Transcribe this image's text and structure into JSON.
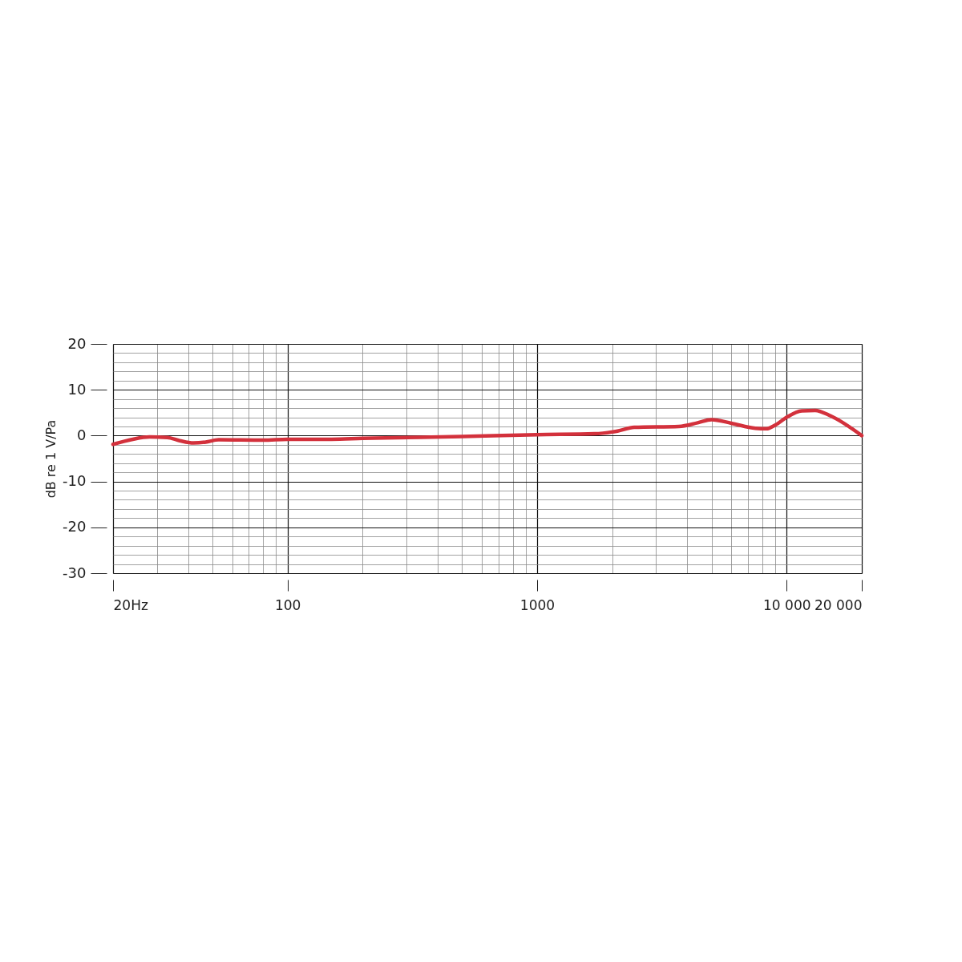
{
  "chart_data": {
    "type": "line",
    "ylabel": "dB re 1 V/Pa",
    "log": "x",
    "grid": true,
    "line_style": "solid",
    "marker": "none",
    "x": [
      20,
      24,
      28,
      33,
      37,
      42,
      47,
      53,
      80,
      100,
      150,
      200,
      500,
      1000,
      1700,
      2100,
      2450,
      3700,
      4400,
      5000,
      6000,
      7500,
      8300,
      9000,
      10000,
      11500,
      13000,
      15000,
      20000
    ],
    "series": [
      {
        "color": "#d3313c",
        "values": [
          -1.9,
          -0.8,
          -0.3,
          -0.4,
          -1.1,
          -1.6,
          -1.4,
          -0.9,
          -1.0,
          -0.8,
          -0.8,
          -0.6,
          -0.2,
          0.2,
          0.4,
          1.0,
          1.8,
          2.0,
          2.8,
          3.5,
          2.7,
          1.6,
          1.5,
          2.3,
          4.0,
          5.4,
          5.5,
          4.3,
          0
        ]
      }
    ],
    "xlim": [
      20,
      20000
    ],
    "ylim": [
      -30,
      20
    ],
    "xticks": [
      {
        "value": 20,
        "label": "20Hz"
      },
      {
        "value": 30,
        "label": null
      },
      {
        "value": 40,
        "label": null
      },
      {
        "value": 50,
        "label": null
      },
      {
        "value": 60,
        "label": null
      },
      {
        "value": 70,
        "label": null
      },
      {
        "value": 80,
        "label": null
      },
      {
        "value": 90,
        "label": null
      },
      100,
      {
        "value": 200,
        "label": null
      },
      {
        "value": 300,
        "label": null
      },
      {
        "value": 400,
        "label": null
      },
      {
        "value": 500,
        "label": null
      },
      {
        "value": 600,
        "label": null
      },
      {
        "value": 700,
        "label": null
      },
      {
        "value": 800,
        "label": null
      },
      {
        "value": 900,
        "label": null
      },
      1000,
      {
        "value": 2000,
        "label": null
      },
      {
        "value": 3000,
        "label": null
      },
      {
        "value": 4000,
        "label": null
      },
      {
        "value": 5000,
        "label": null
      },
      {
        "value": 6000,
        "label": null
      },
      {
        "value": 7000,
        "label": null
      },
      {
        "value": 8000,
        "label": null
      },
      {
        "value": 9000,
        "label": null
      },
      {
        "value": 10000,
        "label": "10 000"
      },
      {
        "value": 20000,
        "label": "20 000"
      }
    ],
    "yticks": [
      -30,
      {
        "value": -28,
        "label": null
      },
      {
        "value": -26,
        "label": null
      },
      {
        "value": -24,
        "label": null
      },
      {
        "value": -22,
        "label": null
      },
      -20,
      {
        "value": -18,
        "label": null
      },
      {
        "value": -16,
        "label": null
      },
      {
        "value": -14,
        "label": null
      },
      {
        "value": -12,
        "label": null
      },
      -10,
      {
        "value": -8,
        "label": null
      },
      {
        "value": -6,
        "label": null
      },
      {
        "value": -4,
        "label": null
      },
      {
        "value": -2,
        "label": null
      },
      0,
      {
        "value": 2,
        "label": null
      },
      {
        "value": 4,
        "label": null
      },
      {
        "value": 6,
        "label": null
      },
      {
        "value": 8,
        "label": null
      },
      10,
      {
        "value": 12,
        "label": null
      },
      {
        "value": 14,
        "label": null
      },
      {
        "value": 16,
        "label": null
      },
      {
        "value": 18,
        "label": null
      },
      20
    ]
  }
}
